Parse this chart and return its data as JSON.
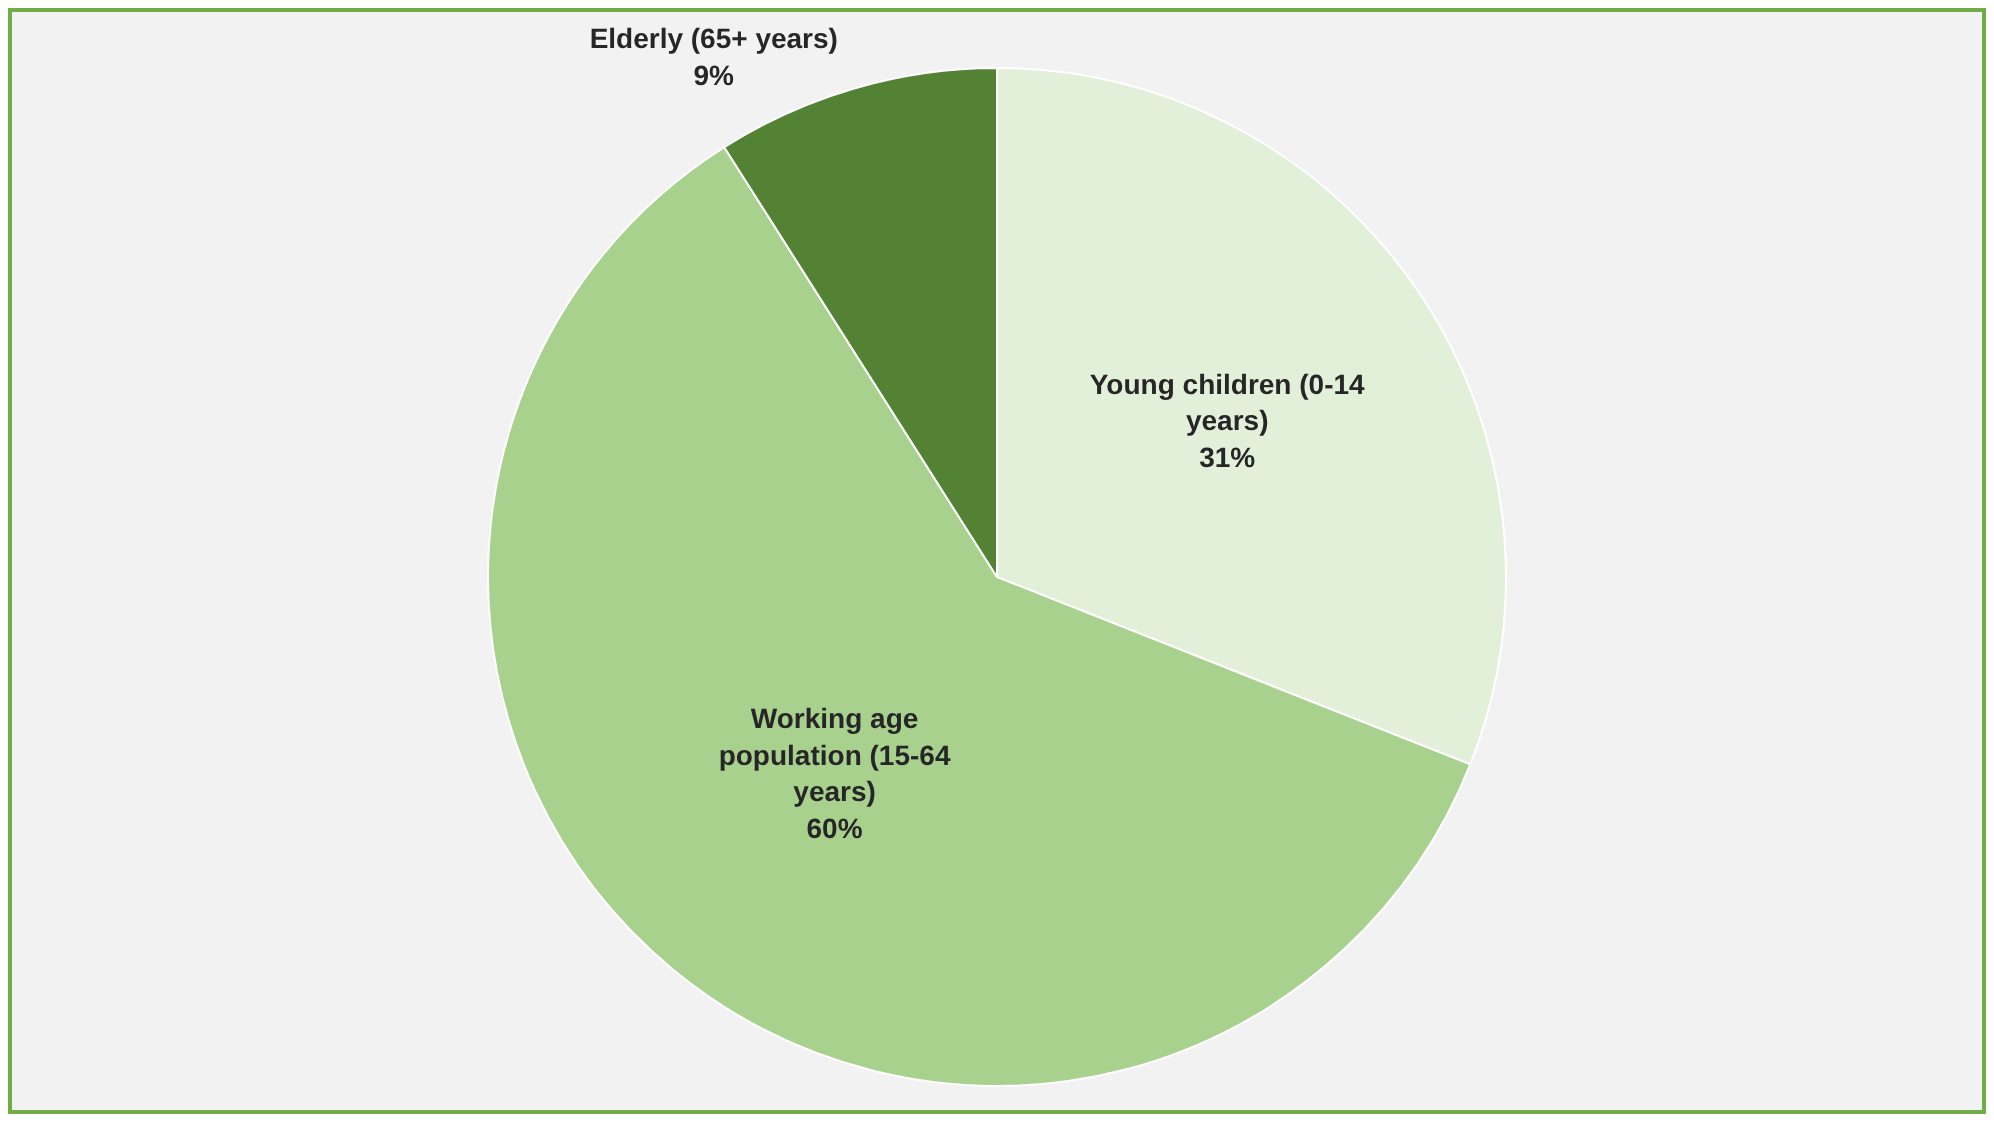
{
  "chart_data": {
    "type": "pie",
    "categories": [
      "Young children (0-14 years)",
      "Working age population (15-64 years)",
      "Elderly (65+ years)"
    ],
    "values": [
      31,
      60,
      9
    ],
    "colors": [
      "#e2efd9",
      "#a9d18e",
      "#548235"
    ],
    "value_labels": [
      "31%",
      "60%",
      "9%"
    ]
  }
}
